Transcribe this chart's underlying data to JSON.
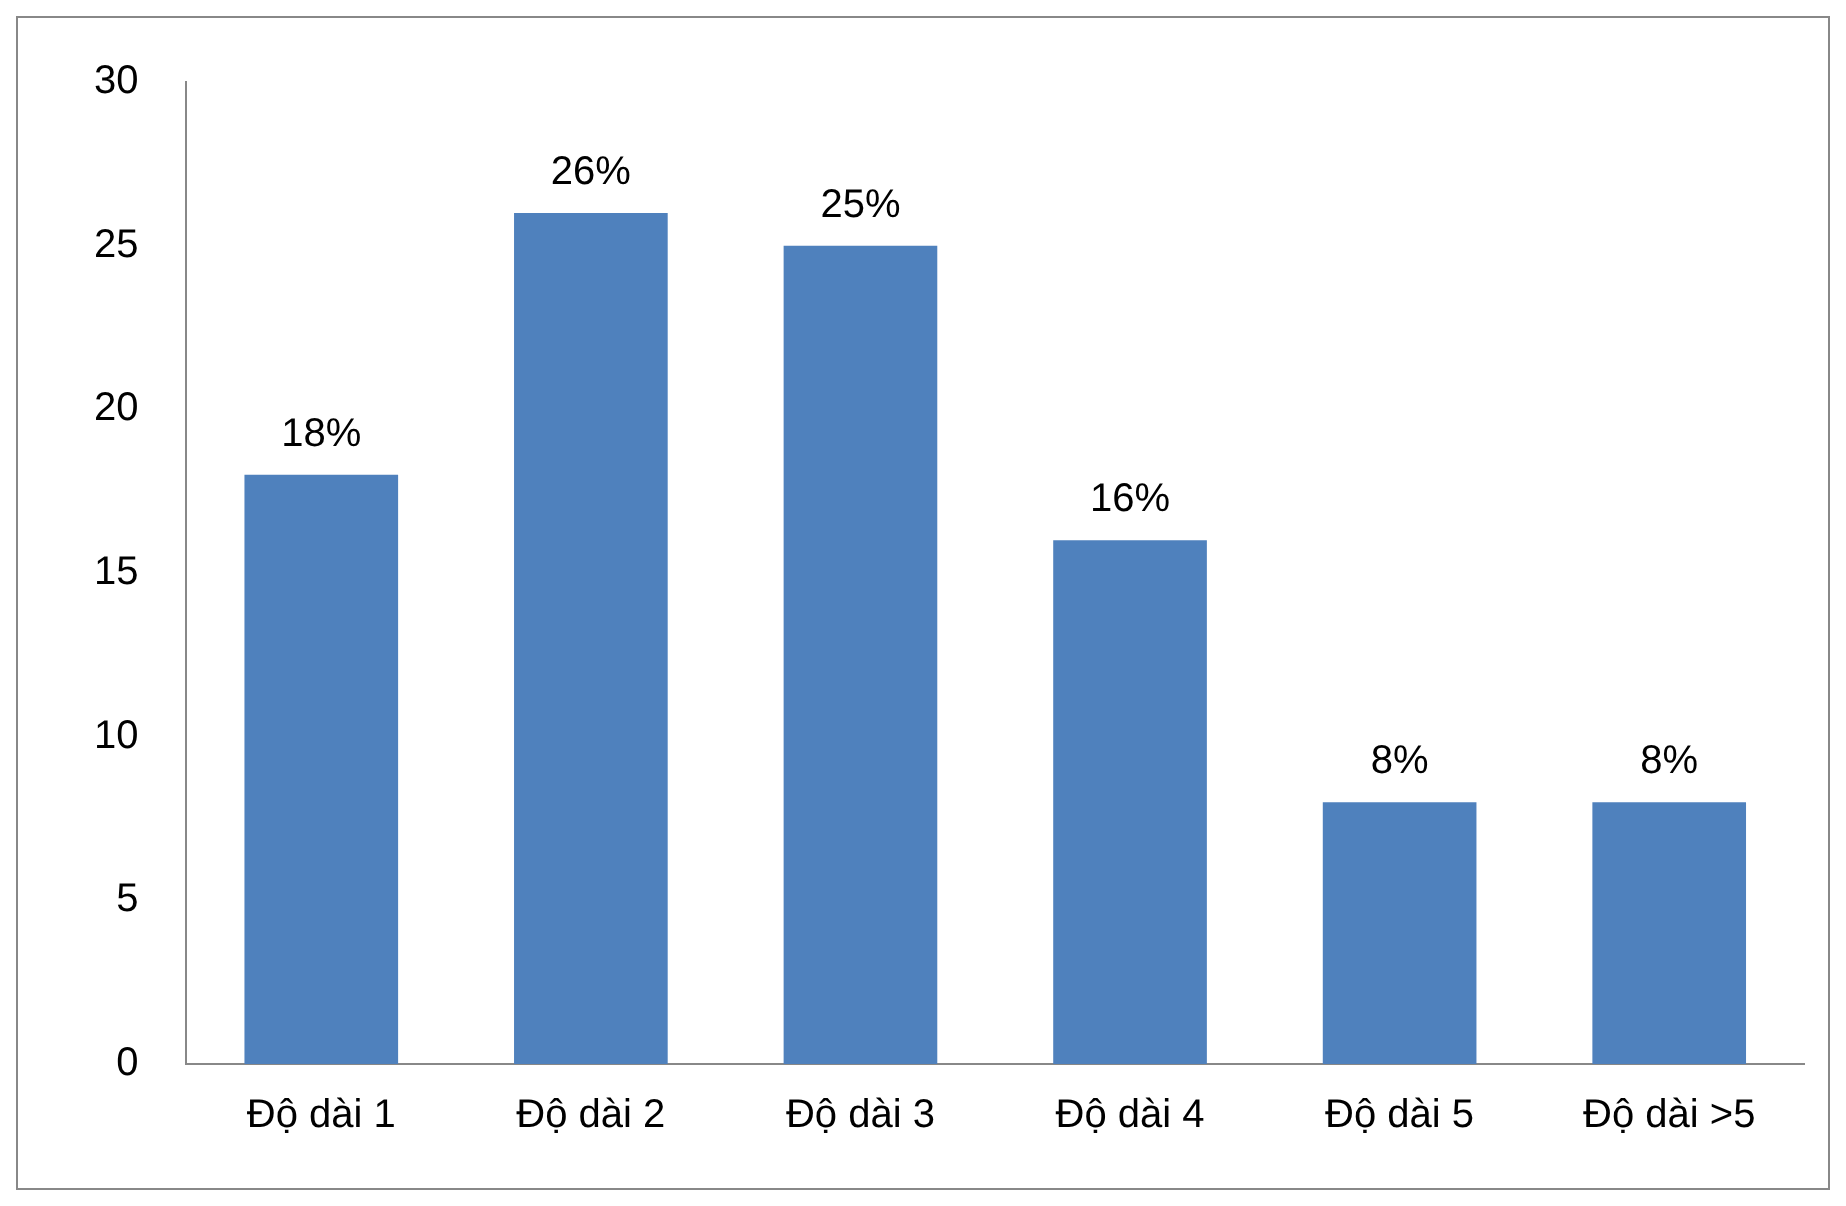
{
  "chart_data": {
    "type": "bar",
    "categories": [
      "Độ dài 1",
      "Độ dài 2",
      "Độ dài 3",
      "Độ dài 4",
      "Độ dài 5",
      "Độ dài >5"
    ],
    "values": [
      18,
      26,
      25,
      16,
      8,
      8
    ],
    "value_labels": [
      "18%",
      "26%",
      "25%",
      "16%",
      "8%",
      "8%"
    ],
    "color": "#4f81bd",
    "ylim": [
      0,
      30
    ],
    "yticks": [
      0,
      5,
      10,
      15,
      20,
      25,
      30
    ],
    "grid": false,
    "legend": false
  }
}
